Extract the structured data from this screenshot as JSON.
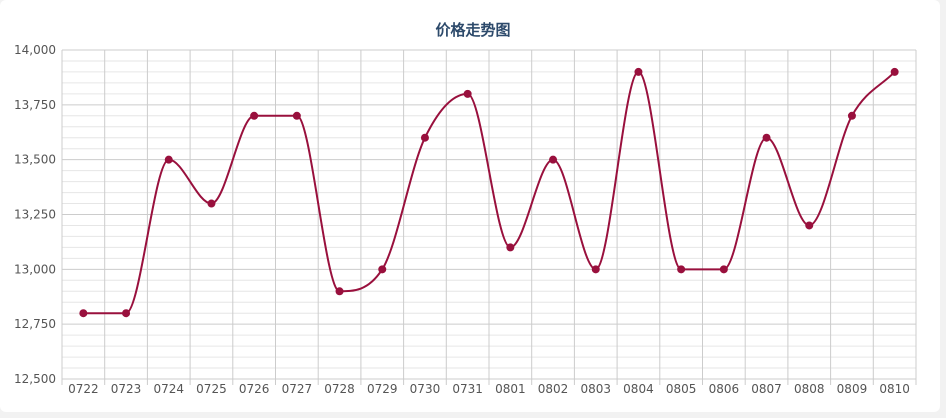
{
  "chart_data": {
    "type": "line",
    "title": "价格走势图",
    "xlabel": "",
    "ylabel": "",
    "categories": [
      "0722",
      "0723",
      "0724",
      "0725",
      "0726",
      "0727",
      "0728",
      "0729",
      "0730",
      "0731",
      "0801",
      "0802",
      "0803",
      "0804",
      "0805",
      "0806",
      "0807",
      "0808",
      "0809",
      "0810"
    ],
    "series": [
      {
        "values": [
          12800,
          12800,
          13500,
          13300,
          13700,
          13700,
          12900,
          13000,
          13600,
          13800,
          13100,
          13500,
          13000,
          13900,
          13000,
          13000,
          13600,
          13200,
          13700,
          13900
        ]
      }
    ],
    "ylim": [
      12500,
      14000
    ],
    "yticks": [
      "12,500",
      "12,750",
      "13,000",
      "13,250",
      "13,500",
      "13,750",
      "14,000"
    ],
    "grid": true,
    "legend": "none",
    "colors": {
      "series": "#99103d",
      "grid": "#e6e6e6",
      "grid_major": "#cccccc",
      "axis_text": "#555555"
    }
  }
}
